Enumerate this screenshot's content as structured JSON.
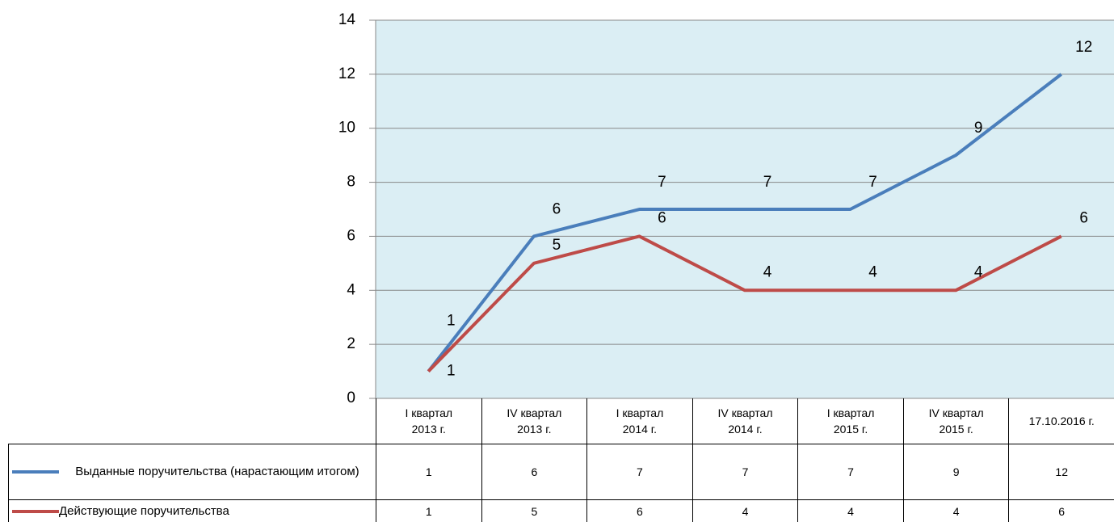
{
  "chart_data": {
    "type": "line",
    "categories": [
      "I квартал 2013 г.",
      "IV квартал 2013 г.",
      "I квартал 2014 г.",
      "IV квартал 2014 г.",
      "I квартал 2015 г.",
      "IV квартал 2015 г.",
      "17.10.2016 г."
    ],
    "series": [
      {
        "name": "Выданные поручительства (нарастающим итогом)",
        "color": "#4a7ebb",
        "values": [
          1,
          6,
          7,
          7,
          7,
          9,
          12
        ]
      },
      {
        "name": "Действующие поручительства",
        "color": "#be4b48",
        "values": [
          1,
          5,
          6,
          4,
          4,
          4,
          6
        ]
      }
    ],
    "ylim": [
      0,
      14
    ],
    "yticks": [
      0,
      2,
      4,
      6,
      8,
      10,
      12,
      14
    ],
    "grid": true,
    "data_table": true
  }
}
